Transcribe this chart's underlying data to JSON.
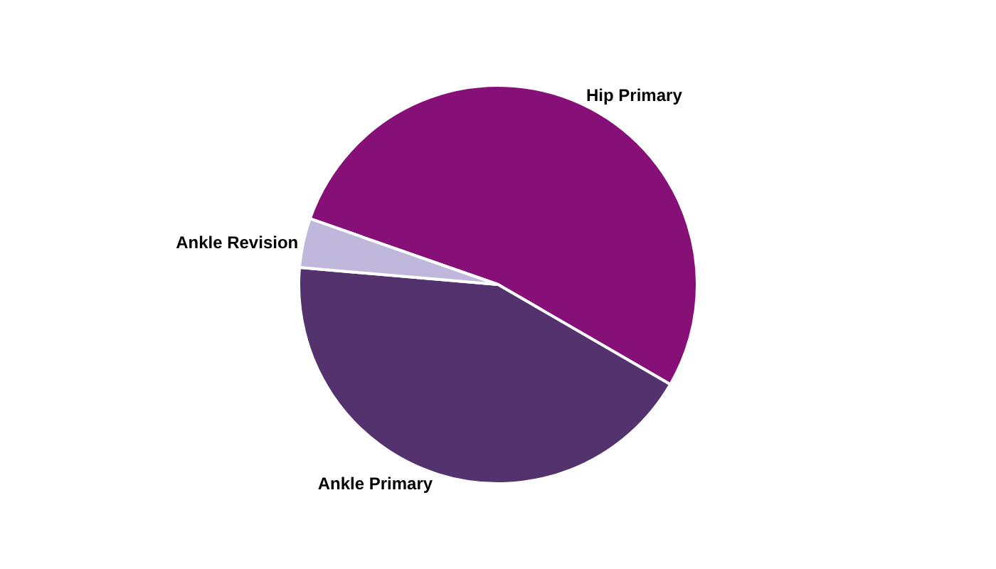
{
  "chart_data": {
    "type": "pie",
    "categories": [
      "Hip Primary",
      "Ankle Primary",
      "Ankle Revision"
    ],
    "values": [
      53,
      43,
      4
    ],
    "colors": [
      "#871078",
      "#54326e",
      "#c0b8dc"
    ],
    "legend": false
  }
}
